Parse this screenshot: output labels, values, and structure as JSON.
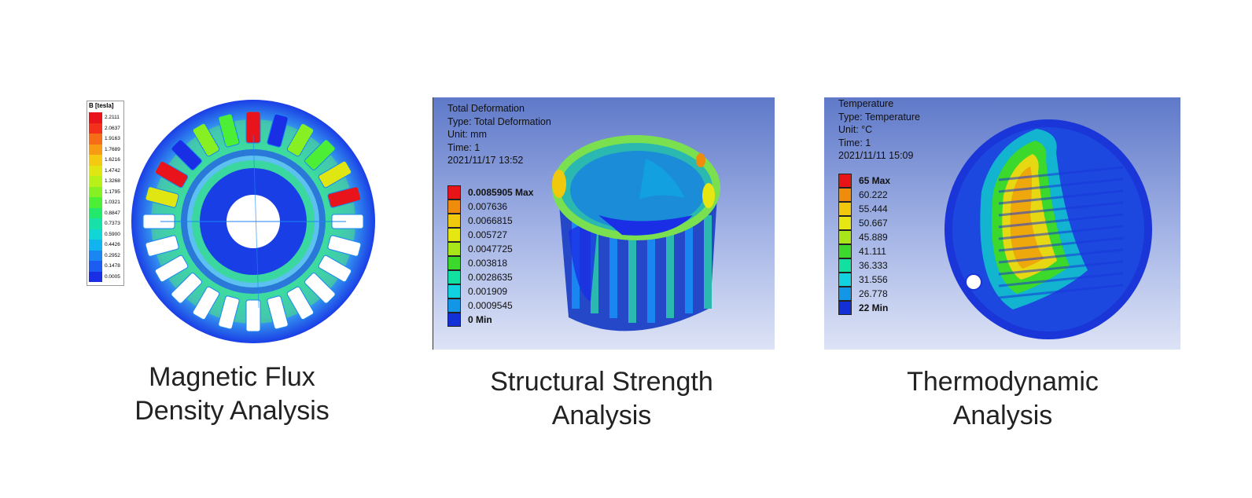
{
  "panels": [
    {
      "id": "magnetic",
      "caption_line1": "Magnetic Flux",
      "caption_line2": "Density Analysis",
      "legend_title": "B [tesla]",
      "legend_values": [
        "2.2111",
        "2.0637",
        "1.9163",
        "1.7689",
        "1.6216",
        "1.4742",
        "1.3268",
        "1.1795",
        "1.0321",
        "0.8847",
        "0.7373",
        "0.5900",
        "0.4426",
        "0.2952",
        "0.1478",
        "0.0005"
      ],
      "legend_colors": [
        "#e8131b",
        "#f2301c",
        "#f56e17",
        "#f79a14",
        "#f5c812",
        "#e0e612",
        "#b8f01a",
        "#86f022",
        "#4cee36",
        "#22e86c",
        "#17e0a8",
        "#12d6d6",
        "#12b4f0",
        "#1a86f2",
        "#1c5cf0",
        "#1a2ee6"
      ]
    },
    {
      "id": "structural",
      "caption_line1": "Structural Strength",
      "caption_line2": "Analysis",
      "info": [
        "Total Deformation",
        "Type: Total Deformation",
        "Unit: mm",
        "Time: 1",
        "2021/11/17 13:52"
      ],
      "legend_values": [
        "0.0085905 Max",
        "0.007636",
        "0.0066815",
        "0.005727",
        "0.0047725",
        "0.003818",
        "0.0028635",
        "0.001909",
        "0.0009545",
        "0 Min"
      ],
      "legend_colors": [
        "#e81418",
        "#f08c0c",
        "#f0c80c",
        "#e6e612",
        "#a8e61a",
        "#3cd82c",
        "#12e0a0",
        "#12d2e0",
        "#1496e6",
        "#1230d6"
      ]
    },
    {
      "id": "thermal",
      "caption_line1": "Thermodynamic",
      "caption_line2": "Analysis",
      "info": [
        "Temperature",
        "Type: Temperature",
        "Unit: °C",
        "Time: 1",
        "2021/11/11 15:09"
      ],
      "legend_values": [
        "65 Max",
        "60.222",
        "55.444",
        "50.667",
        "45.889",
        "41.111",
        "36.333",
        "31.556",
        "26.778",
        "22 Min"
      ],
      "legend_colors": [
        "#e81418",
        "#f08c0c",
        "#f0c80c",
        "#e6e612",
        "#a8e61a",
        "#3cd82c",
        "#12e0a0",
        "#12d2e0",
        "#1496e6",
        "#1230d6"
      ]
    }
  ]
}
